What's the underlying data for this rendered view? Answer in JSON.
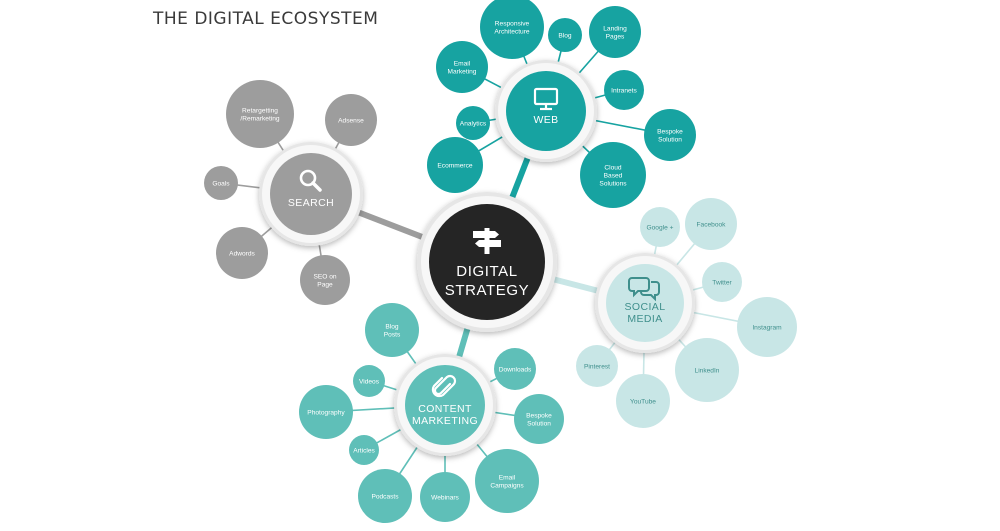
{
  "title": "THE DIGITAL ECOSYSTEM",
  "colors": {
    "web": "#17a3a1",
    "content": "#5fbfb8",
    "social": "#c8e6e6",
    "search": "#9d9d9d",
    "center": "#252525",
    "ring": "#e6e6e6"
  },
  "center": {
    "lines": [
      "DIGITAL",
      "STRATEGY"
    ],
    "icon": "signpost-icon"
  },
  "hubs": [
    {
      "key": "web",
      "lines": [
        "WEB"
      ],
      "icon": "monitor-icon",
      "leaves": [
        {
          "lines": [
            "Responsive",
            "Architecture"
          ]
        },
        {
          "lines": [
            "Blog"
          ]
        },
        {
          "lines": [
            "Landing",
            "Pages"
          ]
        },
        {
          "lines": [
            "Email",
            "Marketing"
          ]
        },
        {
          "lines": [
            "Intranets"
          ]
        },
        {
          "lines": [
            "Analytics"
          ]
        },
        {
          "lines": [
            "Bespoke",
            "Solution"
          ]
        },
        {
          "lines": [
            "Ecommerce"
          ]
        },
        {
          "lines": [
            "Cloud",
            "Based",
            "Solutions"
          ]
        }
      ]
    },
    {
      "key": "search",
      "lines": [
        "SEARCH"
      ],
      "icon": "magnifier-icon",
      "leaves": [
        {
          "lines": [
            "Retargetting",
            "/Remarketing"
          ]
        },
        {
          "lines": [
            "Adsense"
          ]
        },
        {
          "lines": [
            "Goals"
          ]
        },
        {
          "lines": [
            "Adwords"
          ]
        },
        {
          "lines": [
            "SEO on",
            "Page"
          ]
        }
      ]
    },
    {
      "key": "social",
      "lines": [
        "SOCIAL",
        "MEDIA"
      ],
      "icon": "chat-bubbles-icon",
      "leaves": [
        {
          "lines": [
            "Google +"
          ]
        },
        {
          "lines": [
            "Facebook"
          ]
        },
        {
          "lines": [
            "Twitter"
          ]
        },
        {
          "lines": [
            "Instagram"
          ]
        },
        {
          "lines": [
            "LinkedIn"
          ]
        },
        {
          "lines": [
            "YouTube"
          ]
        },
        {
          "lines": [
            "Pinterest"
          ]
        }
      ]
    },
    {
      "key": "content",
      "lines": [
        "CONTENT",
        "MARKETING"
      ],
      "icon": "paperclip-icon",
      "leaves": [
        {
          "lines": [
            "Blog",
            "Posts"
          ]
        },
        {
          "lines": [
            "Downloads"
          ]
        },
        {
          "lines": [
            "Videos"
          ]
        },
        {
          "lines": [
            "Photography"
          ]
        },
        {
          "lines": [
            "Bespoke",
            "Solution"
          ]
        },
        {
          "lines": [
            "Articles"
          ]
        },
        {
          "lines": [
            "Email",
            "Campaigns"
          ]
        },
        {
          "lines": [
            "Podcasts"
          ]
        },
        {
          "lines": [
            "Webinars"
          ]
        }
      ]
    }
  ]
}
